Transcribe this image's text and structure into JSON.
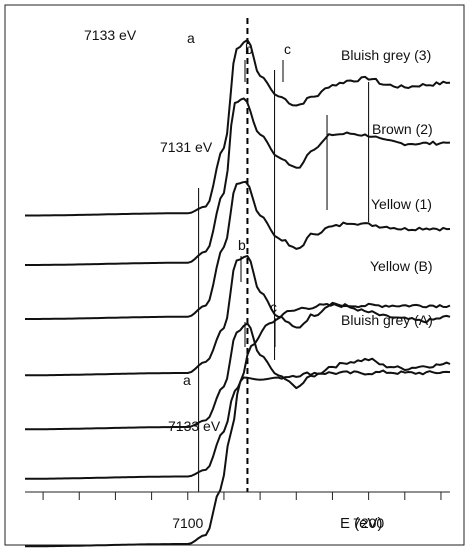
{
  "chart_data": {
    "type": "line",
    "title": "",
    "xlabel": "E (eV)",
    "ylabel": "",
    "xlim": [
      7010,
      7245
    ],
    "xticks": [
      7020,
      7040,
      7060,
      7080,
      7100,
      7120,
      7140,
      7160,
      7180,
      7200,
      7220,
      7240
    ],
    "xtick_labels": [
      {
        "value": 7100,
        "text": "7100"
      },
      {
        "value": 7200,
        "text": "7200"
      }
    ],
    "grid": false,
    "legend": "none",
    "dashed_marker": {
      "x": 7133
    },
    "annotations": [
      {
        "text": "7133 eV",
        "anchor": "top"
      },
      {
        "text": "7131 eV",
        "anchor": "middle"
      },
      {
        "text": "7133 eV",
        "anchor": "bottom"
      },
      {
        "text": "a",
        "anchor": "top"
      },
      {
        "text": "b",
        "anchor": "top"
      },
      {
        "text": "c",
        "anchor": "top"
      },
      {
        "text": "b",
        "anchor": "middle"
      },
      {
        "text": "a",
        "anchor": "bottom"
      },
      {
        "text": "c",
        "anchor": "lower"
      }
    ],
    "reference_lines": [
      {
        "x": 7106
      },
      {
        "x": 7148
      },
      {
        "x": 7177
      },
      {
        "x": 7200
      }
    ],
    "series": [
      {
        "name": "Bluish grey (3)",
        "x": [
          7010,
          7100,
          7110,
          7120,
          7127,
          7133,
          7140,
          7150,
          7160,
          7170,
          7180,
          7190,
          7200,
          7210,
          7220,
          7230,
          7245
        ],
        "values": [
          6.1,
          6.15,
          6.3,
          7.6,
          9.8,
          10.0,
          9.2,
          8.75,
          8.55,
          8.75,
          9.0,
          9.1,
          9.15,
          9.0,
          8.95,
          9.0,
          9.05
        ]
      },
      {
        "name": "Brown (2)",
        "x": [
          7010,
          7100,
          7110,
          7120,
          7126,
          7131,
          7140,
          7150,
          7160,
          7170,
          7180,
          7190,
          7200,
          7210,
          7220,
          7230,
          7245
        ],
        "values": [
          5.0,
          5.05,
          5.3,
          6.6,
          8.6,
          8.7,
          7.9,
          7.4,
          7.15,
          7.6,
          7.9,
          7.92,
          7.88,
          7.75,
          7.7,
          7.7,
          7.72
        ]
      },
      {
        "name": "Yellow (1)",
        "x": [
          7010,
          7100,
          7110,
          7120,
          7127,
          7132,
          7140,
          7150,
          7160,
          7170,
          7180,
          7190,
          7200,
          7210,
          7220,
          7230,
          7245
        ],
        "values": [
          3.8,
          3.85,
          4.1,
          5.4,
          6.8,
          6.85,
          6.1,
          5.6,
          5.35,
          5.7,
          5.85,
          5.95,
          5.9,
          5.85,
          5.8,
          5.82,
          5.8
        ]
      },
      {
        "name": "Yellow (B)",
        "x": [
          7010,
          7100,
          7110,
          7120,
          7127,
          7133,
          7140,
          7150,
          7160,
          7170,
          7180,
          7190,
          7200,
          7210,
          7220,
          7230,
          7245
        ],
        "values": [
          2.55,
          2.6,
          2.85,
          3.6,
          5.1,
          5.2,
          4.4,
          3.85,
          3.6,
          3.9,
          4.15,
          4.05,
          3.95,
          3.85,
          3.8,
          3.75,
          3.85
        ]
      },
      {
        "name": "Bluish grey (A)",
        "x": [
          7010,
          7100,
          7110,
          7120,
          7127,
          7133,
          7140,
          7150,
          7160,
          7170,
          7180,
          7190,
          7200,
          7210,
          7220,
          7230,
          7245
        ],
        "values": [
          1.35,
          1.4,
          1.55,
          2.3,
          3.5,
          3.7,
          3.0,
          2.55,
          2.3,
          2.55,
          2.75,
          2.85,
          2.9,
          2.75,
          2.7,
          2.75,
          2.8
        ]
      },
      {
        "name": "",
        "x": [
          7010,
          7100,
          7110,
          7120,
          7126,
          7131,
          7140,
          7150,
          7160,
          7170,
          7180,
          7190,
          7200,
          7210,
          7220,
          7230,
          7245
        ],
        "values": [
          0.25,
          0.3,
          0.45,
          1.3,
          2.2,
          2.5,
          2.45,
          2.5,
          2.55,
          2.6,
          2.6,
          2.6,
          2.6,
          2.62,
          2.6,
          2.6,
          2.62
        ]
      },
      {
        "name": "",
        "x": [
          7010,
          7100,
          7110,
          7118,
          7124,
          7129,
          7135,
          7145,
          7155,
          7165,
          7175,
          7185,
          7200,
          7215,
          7230,
          7245
        ],
        "values": [
          -1.25,
          -1.2,
          -1.0,
          0.0,
          1.3,
          2.4,
          3.2,
          3.7,
          3.95,
          4.05,
          4.1,
          4.1,
          4.1,
          4.1,
          4.1,
          4.1
        ]
      }
    ]
  }
}
